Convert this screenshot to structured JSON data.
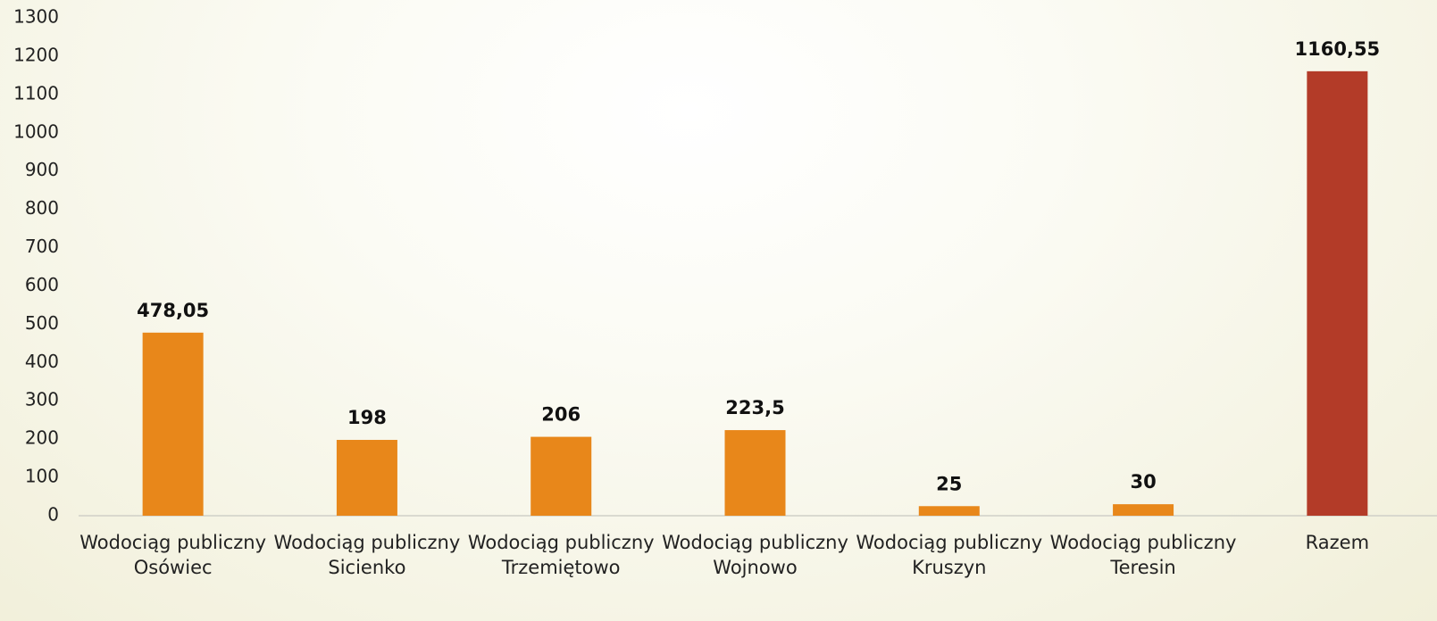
{
  "chart_data": {
    "type": "bar",
    "categories": [
      "Wodociąg publiczny Osówiec",
      "Wodociąg publiczny Sicienko",
      "Wodociąg publiczny Trzemiętowo",
      "Wodociąg publiczny Wojnowo",
      "Wodociąg publiczny Kruszyn",
      "Wodociąg publiczny Teresin",
      "Razem"
    ],
    "values": [
      478.05,
      198,
      206,
      223.5,
      25,
      30,
      1160.55
    ],
    "value_labels": [
      "478,05",
      "198",
      "206",
      "223,5",
      "25",
      "30",
      "1160,55"
    ],
    "colors": [
      "#e8871a",
      "#e8871a",
      "#e8871a",
      "#e8871a",
      "#e8871a",
      "#e8871a",
      "#b33b28"
    ],
    "ylim": [
      0,
      1300
    ],
    "yticks": [
      0,
      100,
      200,
      300,
      400,
      500,
      600,
      700,
      800,
      900,
      1000,
      1100,
      1200,
      1300
    ],
    "grid": false
  }
}
